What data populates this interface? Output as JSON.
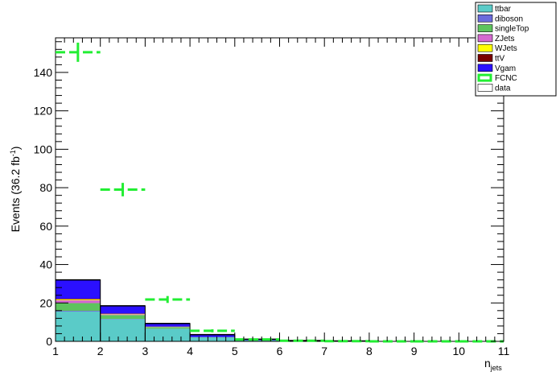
{
  "chart_data": {
    "type": "bar",
    "stacked": true,
    "x_bin_edges": [
      1,
      2,
      3,
      4,
      5,
      6,
      7,
      8,
      9,
      10,
      11
    ],
    "xlim": [
      1,
      11
    ],
    "ylim": [
      0,
      158
    ],
    "xlabel": "n",
    "xlabel_sub": "jets",
    "ylabel": "Events (36.2 fb",
    "ylabel_sup": "-1",
    "ylabel_close": ")",
    "x_ticks": [
      "1",
      "2",
      "3",
      "4",
      "5",
      "6",
      "7",
      "8",
      "9",
      "10",
      "11"
    ],
    "y_ticks": [
      "0",
      "20",
      "40",
      "60",
      "80",
      "100",
      "120",
      "140"
    ],
    "y_tick_values": [
      0,
      20,
      40,
      60,
      80,
      100,
      120,
      140
    ],
    "legend_position": "top-right",
    "series": [
      {
        "name": "ttbar",
        "color": "#5acbc8",
        "values": [
          15.5,
          11.5,
          6.5,
          2.0,
          0.6,
          0.2,
          0.1,
          0.0,
          0.0,
          0.0
        ]
      },
      {
        "name": "diboson",
        "color": "#6b6bdc",
        "values": [
          0.4,
          0.2,
          0.1,
          0.0,
          0.0,
          0.0,
          0.0,
          0.0,
          0.0,
          0.0
        ]
      },
      {
        "name": "singleTop",
        "color": "#5dc45d",
        "values": [
          4.0,
          2.0,
          0.8,
          0.2,
          0.0,
          0.0,
          0.0,
          0.0,
          0.0,
          0.0
        ]
      },
      {
        "name": "ZJets",
        "color": "#d469cf",
        "values": [
          1.5,
          0.4,
          0.1,
          0.0,
          0.0,
          0.0,
          0.0,
          0.0,
          0.0,
          0.0
        ]
      },
      {
        "name": "WJets",
        "color": "#ffff00",
        "values": [
          0.5,
          0.2,
          0.1,
          0.0,
          0.0,
          0.0,
          0.0,
          0.0,
          0.0,
          0.0
        ]
      },
      {
        "name": "ttV",
        "color": "#7a0000",
        "values": [
          0.3,
          0.2,
          0.1,
          0.0,
          0.0,
          0.0,
          0.0,
          0.0,
          0.0,
          0.0
        ]
      },
      {
        "name": "Vgam",
        "color": "#2b10ff",
        "values": [
          9.8,
          4.0,
          1.6,
          1.3,
          0.5,
          0.2,
          0.1,
          0.0,
          0.0,
          0.0
        ]
      }
    ],
    "signal": {
      "name": "FCNC",
      "color": "#22ee33",
      "values": [
        150.5,
        79.0,
        21.8,
        5.5,
        1.0,
        0.3,
        0.1,
        0.0,
        0.0,
        0.0
      ],
      "errors": [
        5.0,
        3.5,
        1.8,
        0.8,
        0.3,
        0.1,
        0.1,
        0.0,
        0.0,
        0.0
      ]
    },
    "data": {
      "name": "data",
      "color": "#ffffff",
      "values": []
    }
  }
}
